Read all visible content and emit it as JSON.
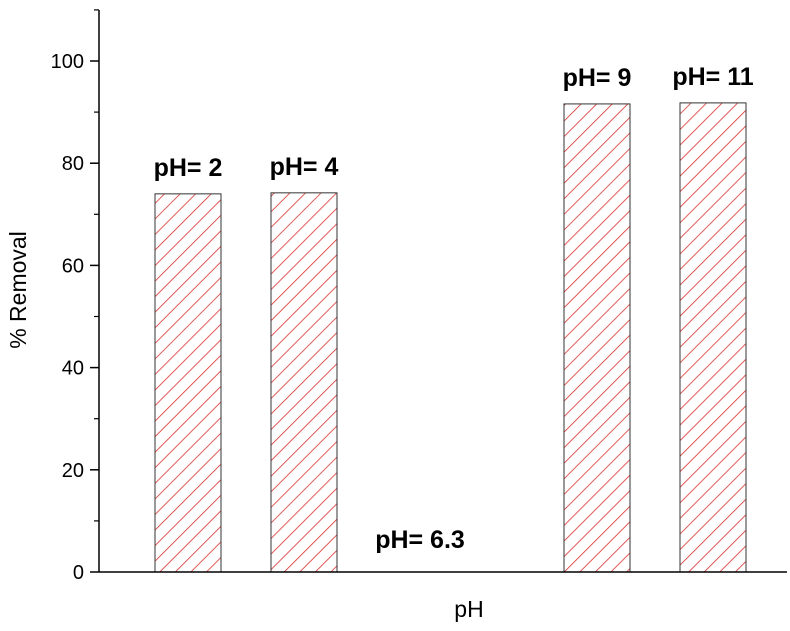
{
  "chart_data": {
    "type": "bar",
    "categories": [
      "pH= 2",
      "pH= 4",
      "pH= 6.3",
      "pH= 9",
      "pH= 11"
    ],
    "values": [
      74,
      74.2,
      0,
      91.6,
      91.8
    ],
    "xlabel": "pH",
    "ylabel": "% Removal",
    "ylim": [
      0,
      110
    ],
    "yticks": [
      0,
      20,
      40,
      60,
      80,
      100
    ],
    "grid": false,
    "legend": "none",
    "bar_color": "#d9302c",
    "bar_fill": "diagonal hatch"
  }
}
